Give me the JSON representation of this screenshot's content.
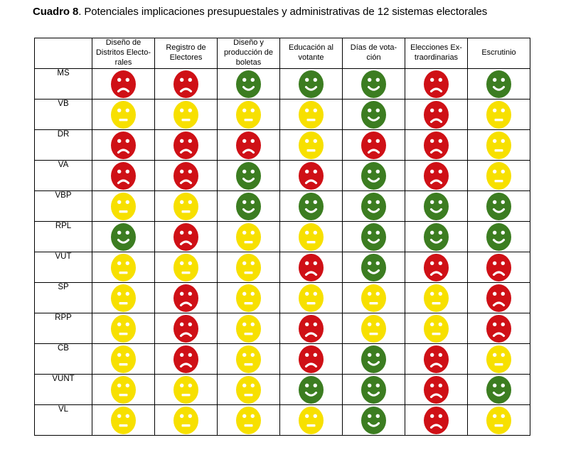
{
  "title": {
    "prefix": "Cuadro 8",
    "rest": ". Potenciales implicaciones presupuestales y administrativas de 12 sistemas electorales"
  },
  "table": {
    "corner_label": "",
    "columns": [
      "Diseño de\nDistritos Electo-\nrales",
      "Registro de\nElectores",
      "Diseño y\nproducción de\nboletas",
      "Educación al\nvotante",
      "Días de vota-\nción",
      "Elecciones Ex-\ntraordinarias",
      "Escrutinio"
    ],
    "rows": [
      {
        "label": "MS",
        "cells": [
          "red-sad",
          "red-sad",
          "green-happy",
          "green-happy",
          "green-happy",
          "red-sad",
          "green-happy"
        ]
      },
      {
        "label": "VB",
        "cells": [
          "yellow-neutral",
          "yellow-neutral",
          "yellow-neutral",
          "yellow-neutral",
          "green-happy",
          "red-sad",
          "yellow-neutral"
        ]
      },
      {
        "label": "DR",
        "cells": [
          "red-sad",
          "red-sad",
          "red-sad",
          "yellow-neutral",
          "red-sad",
          "red-sad",
          "yellow-neutral"
        ]
      },
      {
        "label": "VA",
        "cells": [
          "red-sad",
          "red-sad",
          "green-happy",
          "red-sad",
          "green-happy",
          "red-sad",
          "yellow-neutral"
        ]
      },
      {
        "label": "VBP",
        "cells": [
          "yellow-neutral",
          "yellow-neutral",
          "green-happy",
          "green-happy",
          "green-happy",
          "green-happy",
          "green-happy"
        ]
      },
      {
        "label": "RPL",
        "cells": [
          "green-happy",
          "red-sad",
          "yellow-neutral",
          "yellow-neutral",
          "green-happy",
          "green-happy",
          "green-happy"
        ]
      },
      {
        "label": "VUT",
        "cells": [
          "yellow-neutral",
          "yellow-neutral",
          "yellow-neutral",
          "red-sad",
          "green-happy",
          "red-sad",
          "red-sad"
        ]
      },
      {
        "label": "SP",
        "cells": [
          "yellow-neutral",
          "red-sad",
          "yellow-neutral",
          "yellow-neutral",
          "yellow-neutral",
          "yellow-neutral",
          "red-sad"
        ]
      },
      {
        "label": "RPP",
        "cells": [
          "yellow-neutral",
          "red-sad",
          "yellow-neutral",
          "red-sad",
          "yellow-neutral",
          "yellow-neutral",
          "red-sad"
        ]
      },
      {
        "label": "CB",
        "cells": [
          "yellow-neutral",
          "red-sad",
          "yellow-neutral",
          "red-sad",
          "green-happy",
          "red-sad",
          "yellow-neutral"
        ]
      },
      {
        "label": "VUNT",
        "cells": [
          "yellow-neutral",
          "yellow-neutral",
          "yellow-neutral",
          "green-happy",
          "green-happy",
          "red-sad",
          "green-happy"
        ]
      },
      {
        "label": "VL",
        "cells": [
          "yellow-neutral",
          "yellow-neutral",
          "yellow-neutral",
          "yellow-neutral",
          "green-happy",
          "red-sad",
          "yellow-neutral"
        ]
      }
    ]
  },
  "face_types": {
    "red-sad": {
      "color": "#cf1016",
      "mouth": "sad"
    },
    "yellow-neutral": {
      "color": "#f7e000",
      "mouth": "neutral"
    },
    "green-happy": {
      "color": "#3c7d21",
      "mouth": "happy"
    }
  }
}
